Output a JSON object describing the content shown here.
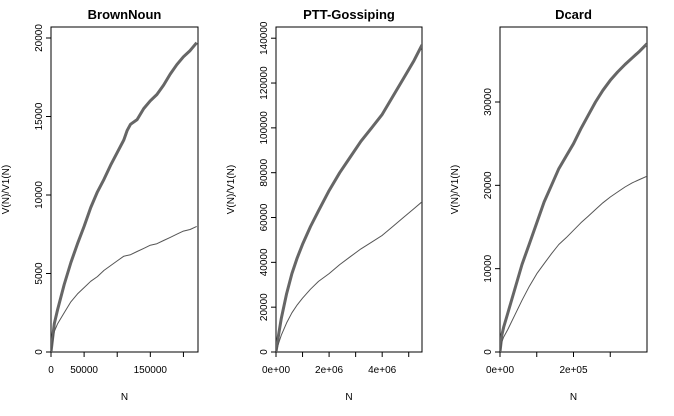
{
  "colors": {
    "background": "#ffffff",
    "vn_line": "#666666",
    "v1_line": "#555555",
    "axis": "#000000"
  },
  "chart_data": [
    {
      "type": "line",
      "title": "BrownNoun",
      "xlabel": "N",
      "ylabel": "V(N)/V1(N)",
      "xlim": [
        0,
        222000
      ],
      "ylim": [
        0,
        20700
      ],
      "xticks": [
        0,
        50000,
        100000,
        150000,
        200000
      ],
      "xtick_labels": [
        "0",
        "50000",
        "",
        "150000",
        ""
      ],
      "yticks": [
        0,
        5000,
        10000,
        15000,
        20000
      ],
      "ytick_labels": [
        "0",
        "5000",
        "10000",
        "15000",
        "20000"
      ],
      "grid": false,
      "series": [
        {
          "width": 3,
          "x": [
            0,
            5000,
            10000,
            20000,
            30000,
            40000,
            50000,
            60000,
            70000,
            80000,
            90000,
            100000,
            110000,
            115000,
            120000,
            130000,
            140000,
            150000,
            160000,
            170000,
            180000,
            190000,
            200000,
            210000,
            220000
          ],
          "y": [
            0,
            1800,
            2700,
            4300,
            5700,
            6900,
            8000,
            9200,
            10200,
            11000,
            11900,
            12700,
            13500,
            14100,
            14500,
            14800,
            15500,
            16000,
            16400,
            17000,
            17700,
            18300,
            18800,
            19200,
            19700
          ]
        },
        {
          "width": 1,
          "x": [
            0,
            5000,
            10000,
            20000,
            30000,
            40000,
            50000,
            60000,
            70000,
            80000,
            90000,
            100000,
            110000,
            120000,
            130000,
            140000,
            150000,
            160000,
            170000,
            180000,
            190000,
            200000,
            210000,
            220000
          ],
          "y": [
            0,
            1300,
            1800,
            2500,
            3200,
            3700,
            4100,
            4500,
            4800,
            5200,
            5500,
            5800,
            6100,
            6200,
            6400,
            6600,
            6800,
            6900,
            7100,
            7300,
            7500,
            7700,
            7800,
            8000
          ]
        }
      ]
    },
    {
      "type": "line",
      "title": "PTT-Gossiping",
      "xlabel": "N",
      "ylabel": "V(N)/V1(N)",
      "xlim": [
        0,
        5500000
      ],
      "ylim": [
        0,
        145000
      ],
      "xticks": [
        0,
        1000000,
        2000000,
        3000000,
        4000000,
        5000000
      ],
      "xtick_labels": [
        "0e+00",
        "",
        "2e+06",
        "",
        "4e+06",
        ""
      ],
      "yticks": [
        0,
        20000,
        40000,
        60000,
        80000,
        100000,
        120000,
        140000
      ],
      "ytick_labels": [
        "0",
        "20000",
        "40000",
        "60000",
        "80000",
        "100000",
        "120000",
        "140000"
      ],
      "grid": false,
      "series": [
        {
          "width": 3,
          "x": [
            0,
            100000,
            200000,
            400000,
            600000,
            800000,
            1000000,
            1300000,
            1600000,
            2000000,
            2400000,
            2800000,
            3200000,
            3600000,
            4000000,
            4400000,
            4800000,
            5200000,
            5500000
          ],
          "y": [
            0,
            8000,
            15000,
            26000,
            35000,
            42000,
            48000,
            56000,
            63000,
            72000,
            80000,
            87000,
            94000,
            100000,
            106000,
            114000,
            122000,
            130000,
            137000
          ]
        },
        {
          "width": 1,
          "x": [
            0,
            100000,
            200000,
            400000,
            600000,
            800000,
            1000000,
            1300000,
            1600000,
            2000000,
            2400000,
            2800000,
            3200000,
            3600000,
            4000000,
            4400000,
            4800000,
            5200000,
            5500000
          ],
          "y": [
            0,
            4000,
            7500,
            13000,
            17500,
            21000,
            24000,
            28000,
            31500,
            35000,
            39000,
            42500,
            46000,
            49000,
            52000,
            56000,
            60000,
            64000,
            67000
          ]
        }
      ]
    },
    {
      "type": "line",
      "title": "Dcard",
      "xlabel": "N",
      "ylabel": "V(N)/V1(N)",
      "xlim": [
        0,
        400000
      ],
      "ylim": [
        0,
        39000
      ],
      "xticks": [
        0,
        100000,
        200000,
        300000
      ],
      "xtick_labels": [
        "0e+00",
        "",
        "2e+05",
        ""
      ],
      "yticks": [
        0,
        10000,
        20000,
        30000
      ],
      "ytick_labels": [
        "0",
        "10000",
        "20000",
        "30000"
      ],
      "grid": false,
      "series": [
        {
          "width": 3,
          "x": [
            0,
            5000,
            10000,
            20000,
            40000,
            60000,
            80000,
            100000,
            120000,
            140000,
            160000,
            180000,
            200000,
            220000,
            240000,
            260000,
            280000,
            300000,
            320000,
            340000,
            360000,
            380000,
            400000
          ],
          "y": [
            0,
            2000,
            3000,
            4500,
            7500,
            10500,
            13000,
            15500,
            18000,
            20000,
            22000,
            23500,
            25000,
            26800,
            28400,
            30000,
            31400,
            32600,
            33600,
            34500,
            35300,
            36100,
            37000
          ]
        },
        {
          "width": 1,
          "x": [
            0,
            5000,
            10000,
            20000,
            40000,
            60000,
            80000,
            100000,
            120000,
            140000,
            160000,
            180000,
            200000,
            220000,
            240000,
            260000,
            280000,
            300000,
            320000,
            340000,
            360000,
            380000,
            400000
          ],
          "y": [
            0,
            1200,
            1800,
            2600,
            4400,
            6200,
            7900,
            9400,
            10600,
            11800,
            12900,
            13700,
            14600,
            15500,
            16300,
            17100,
            17900,
            18600,
            19200,
            19800,
            20300,
            20700,
            21100
          ]
        }
      ]
    }
  ]
}
